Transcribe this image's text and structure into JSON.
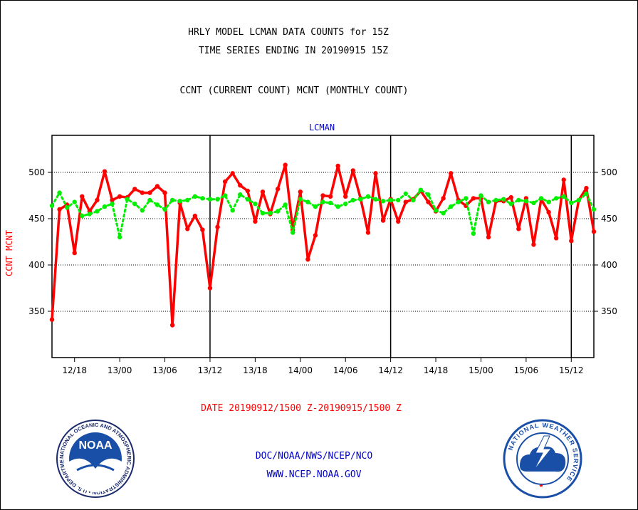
{
  "header": {
    "title_line1": "HRLY MODEL LCMAN DATA COUNTS for 15Z",
    "title_line2": "TIME SERIES ENDING IN 20190915 15Z",
    "subtitle": "CCNT (CURRENT COUNT) MCNT (MONTHLY COUNT)"
  },
  "footer": {
    "date_range": "DATE 20190912/1500 Z-20190915/1500 Z",
    "org": "DOC/NOAA/NWS/NCEP/NCO",
    "url": "WWW.NCEP.NOAA.GOV"
  },
  "logos": {
    "left": {
      "text": "NOAA",
      "ring_text": "NATIONAL OCEANIC AND ATMOSPHERIC ADMINISTRATION • U.S. DEPARTMENT OF COMMERCE"
    },
    "right": {
      "ring_text": "NATIONAL WEATHER SERVICE"
    }
  },
  "colors": {
    "ccnt": "#ff0000",
    "mcnt": "#00ee00",
    "text_blue": "#0000cc",
    "text_red": "#ff0000"
  },
  "chart_data": {
    "type": "line",
    "title": "LCMAN",
    "ylabel": "CCNT  MCNT",
    "ylim": [
      300,
      540
    ],
    "yticks": [
      350,
      400,
      450,
      500
    ],
    "xlim": [
      0,
      72
    ],
    "xticks": [
      {
        "x": 3,
        "label": "12/18"
      },
      {
        "x": 9,
        "label": "13/00"
      },
      {
        "x": 15,
        "label": "13/06"
      },
      {
        "x": 21,
        "label": "13/12"
      },
      {
        "x": 27,
        "label": "13/18"
      },
      {
        "x": 33,
        "label": "14/00"
      },
      {
        "x": 39,
        "label": "14/06"
      },
      {
        "x": 45,
        "label": "14/12"
      },
      {
        "x": 51,
        "label": "14/18"
      },
      {
        "x": 57,
        "label": "15/00"
      },
      {
        "x": 63,
        "label": "15/06"
      },
      {
        "x": 69,
        "label": "15/12"
      }
    ],
    "day_boundaries": [
      21,
      45,
      69
    ],
    "grid": true,
    "series": [
      {
        "name": "CCNT",
        "color": "#ff0000",
        "style": "solid",
        "values": [
          341,
          460,
          465,
          413,
          474,
          458,
          470,
          501,
          470,
          474,
          473,
          482,
          478,
          478,
          485,
          478,
          335,
          467,
          439,
          453,
          438,
          375,
          441,
          490,
          499,
          486,
          480,
          447,
          479,
          455,
          482,
          508,
          438,
          479,
          406,
          432,
          475,
          474,
          507,
          474,
          502,
          472,
          435,
          499,
          448,
          471,
          447,
          468,
          471,
          480,
          468,
          458,
          472,
          499,
          470,
          464,
          472,
          472,
          430,
          469,
          469,
          473,
          439,
          472,
          422,
          471,
          457,
          429,
          492,
          426,
          470,
          483,
          436
        ]
      },
      {
        "name": "MCNT",
        "color": "#00ee00",
        "style": "dotted",
        "values": [
          464,
          478,
          462,
          468,
          453,
          455,
          458,
          463,
          466,
          430,
          471,
          466,
          459,
          470,
          465,
          460,
          470,
          469,
          470,
          474,
          472,
          471,
          471,
          475,
          459,
          476,
          471,
          466,
          456,
          456,
          458,
          465,
          435,
          471,
          468,
          463,
          468,
          467,
          463,
          466,
          470,
          471,
          474,
          471,
          469,
          470,
          470,
          477,
          470,
          481,
          476,
          459,
          456,
          463,
          468,
          472,
          434,
          475,
          468,
          470,
          471,
          466,
          470,
          469,
          467,
          472,
          468,
          472,
          474,
          467,
          470,
          477,
          460
        ]
      }
    ]
  }
}
